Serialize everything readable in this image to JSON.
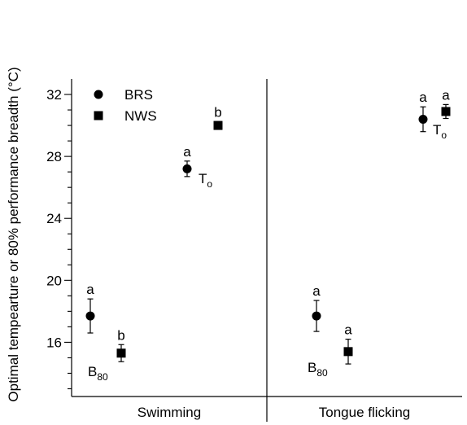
{
  "chart_data": {
    "type": "scatter",
    "ylabel": "Optimal tempearture or 80% performance breadth (°C)",
    "xlabel": "",
    "ylim": [
      12.5,
      33
    ],
    "yticks": [
      16,
      20,
      24,
      28,
      32
    ],
    "panels": [
      "Swimming",
      "Tongue flicking"
    ],
    "legend": {
      "placement": "top-left",
      "entries": [
        {
          "name": "BRS",
          "marker": "circle"
        },
        {
          "name": "NWS",
          "marker": "square"
        }
      ]
    },
    "series": [
      {
        "name": "BRS",
        "marker": "circle",
        "points": [
          {
            "panel": "Swimming",
            "variable": "B80",
            "y": 17.7,
            "err": 1.1,
            "letter": "a"
          },
          {
            "panel": "Swimming",
            "variable": "To",
            "y": 27.2,
            "err": 0.5,
            "letter": "a"
          },
          {
            "panel": "Tongue flicking",
            "variable": "B80",
            "y": 17.7,
            "err": 1.0,
            "letter": "a"
          },
          {
            "panel": "Tongue flicking",
            "variable": "To",
            "y": 30.4,
            "err": 0.8,
            "letter": "a"
          }
        ]
      },
      {
        "name": "NWS",
        "marker": "square",
        "points": [
          {
            "panel": "Swimming",
            "variable": "B80",
            "y": 15.3,
            "err": 0.55,
            "letter": "b"
          },
          {
            "panel": "Swimming",
            "variable": "To",
            "y": 30.0,
            "err": 0.25,
            "letter": "b"
          },
          {
            "panel": "Tongue flicking",
            "variable": "B80",
            "y": 15.4,
            "err": 0.8,
            "letter": "a"
          },
          {
            "panel": "Tongue flicking",
            "variable": "To",
            "y": 30.9,
            "err": 0.45,
            "letter": "a"
          }
        ]
      }
    ],
    "annotations": [
      {
        "panel": "Swimming",
        "base": "B",
        "sub": "80"
      },
      {
        "panel": "Swimming",
        "base": "T",
        "sub": "o"
      },
      {
        "panel": "Tongue flicking",
        "base": "B",
        "sub": "80"
      },
      {
        "panel": "Tongue flicking",
        "base": "T",
        "sub": "o"
      }
    ]
  }
}
